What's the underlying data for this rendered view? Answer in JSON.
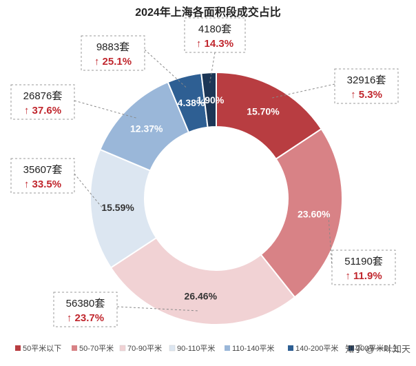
{
  "chart_data": {
    "type": "pie",
    "donut": true,
    "title": "2024年上海各面积段成交占比",
    "categories": [
      "50平米以下",
      "50-70平米",
      "70-90平米",
      "90-110平米",
      "110-140平米",
      "140-200平米",
      "200平米以上"
    ],
    "values": [
      15.7,
      23.6,
      26.46,
      15.59,
      12.37,
      4.38,
      1.9
    ],
    "value_labels": [
      "15.70%",
      "23.60%",
      "26.46%",
      "15.59%",
      "12.37%",
      "4.38%",
      "1.90%"
    ],
    "volumes": [
      "32916套",
      "51190套",
      "56380套",
      "35607套",
      "26876套",
      "9883套",
      "4180套"
    ],
    "changes": [
      "↑ 5.3%",
      "↑ 11.9%",
      "↑ 23.7%",
      "↑ 33.5%",
      "↑ 37.6%",
      "↑ 25.1%",
      "↑ 14.3%"
    ],
    "colors": [
      "#b83d41",
      "#d88286",
      "#f1d2d4",
      "#dce6f1",
      "#9ab7d9",
      "#2e5f93",
      "#1c3656"
    ],
    "label_colors": [
      "#ffffff",
      "#ffffff",
      "#333333",
      "#333333",
      "#ffffff",
      "#ffffff",
      "#ffffff"
    ],
    "legend_position": "bottom",
    "watermark": "知乎 @一叶知天"
  }
}
